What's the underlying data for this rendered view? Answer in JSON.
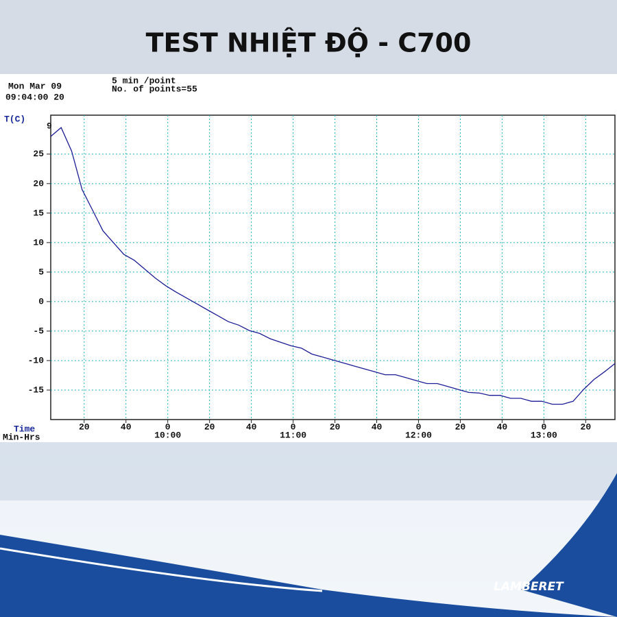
{
  "header": {
    "title": "TEST NHIỆT ĐỘ - C700"
  },
  "logo": "LAMBERET",
  "chart_data": {
    "type": "line",
    "info": [
      "Mon Mar 09",
      "09:04:00 20",
      "5 min /point",
      "No. of points=55"
    ],
    "y_label": "T(C)",
    "x_label": [
      "Time",
      "Min-Hrs"
    ],
    "annotation": "9",
    "x": [
      544,
      549,
      554,
      559,
      564,
      569,
      574,
      579,
      584,
      589,
      594,
      599,
      604,
      609,
      614,
      619,
      624,
      629,
      634,
      639,
      644,
      649,
      654,
      659,
      664,
      669,
      674,
      679,
      684,
      689,
      694,
      699,
      704,
      709,
      714,
      719,
      724,
      729,
      734,
      739,
      744,
      749,
      754,
      759,
      764,
      769,
      774,
      779,
      784,
      789,
      794,
      799,
      804,
      809,
      814
    ],
    "series": [
      {
        "color": "#1c1c96",
        "values": [
          28,
          29.5,
          25.5,
          19,
          15.5,
          12,
          10,
          8,
          7,
          5.5,
          4,
          2.7,
          1.6,
          0.6,
          -0.4,
          -1.4,
          -2.4,
          -3.4,
          -4,
          -4.9,
          -5.4,
          -6.3,
          -6.9,
          -7.5,
          -7.9,
          -8.9,
          -9.4,
          -9.9,
          -10.4,
          -10.9,
          -11.4,
          -11.9,
          -12.4,
          -12.4,
          -12.9,
          -13.4,
          -13.9,
          -13.9,
          -14.4,
          -14.9,
          -15.4,
          -15.5,
          -15.9,
          -15.9,
          -16.4,
          -16.4,
          -16.9,
          -16.9,
          -17.4,
          -17.4,
          -16.9,
          -14.9,
          -13.2,
          -11.9,
          -10.5
        ]
      }
    ],
    "xlim": [
      544,
      814
    ],
    "ylim": [
      -20,
      31.6
    ],
    "xticks": [
      {
        "value": 560,
        "label": "20"
      },
      {
        "value": 580,
        "label": "40"
      },
      {
        "value": 600,
        "label": "0"
      },
      {
        "value": 620,
        "label": "20"
      },
      {
        "value": 640,
        "label": "40"
      },
      {
        "value": 660,
        "label": "0"
      },
      {
        "value": 680,
        "label": "20"
      },
      {
        "value": 700,
        "label": "40"
      },
      {
        "value": 720,
        "label": "0"
      },
      {
        "value": 740,
        "label": "20"
      },
      {
        "value": 760,
        "label": "40"
      },
      {
        "value": 780,
        "label": "0"
      },
      {
        "value": 800,
        "label": "20"
      }
    ],
    "xtick_hours": [
      {
        "value": 600,
        "label": "10:00"
      },
      {
        "value": 660,
        "label": "11:00"
      },
      {
        "value": 720,
        "label": "12:00"
      },
      {
        "value": 780,
        "label": "13:00"
      }
    ],
    "yticks": [
      -15,
      -10,
      -5,
      0,
      5,
      10,
      15,
      20,
      25
    ],
    "grid": true,
    "grid_color": "#1fb5b5"
  }
}
